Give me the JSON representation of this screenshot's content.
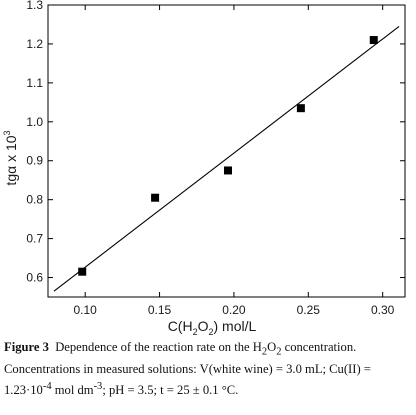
{
  "chart_data": {
    "type": "scatter",
    "title": "",
    "xlabel": "C(H2O2) mol/L",
    "xlabel_parts": {
      "pre": "C(H",
      "sub1": "2",
      "mid": "O",
      "sub2": "2",
      "post": ") mol/L"
    },
    "ylabel": "tgα x 10^3",
    "ylabel_parts": {
      "base": "tgα x 10",
      "sup": "3"
    },
    "xlim": [
      0.075,
      0.315
    ],
    "ylim": [
      0.55,
      1.3
    ],
    "x_ticks": [
      0.1,
      0.15,
      0.2,
      0.25,
      0.3
    ],
    "x_tick_labels": [
      "0.10",
      "0.15",
      "0.20",
      "0.25",
      "0.30"
    ],
    "y_ticks": [
      0.6,
      0.7,
      0.8,
      0.9,
      1.0,
      1.1,
      1.2,
      1.3
    ],
    "y_tick_labels": [
      "0.6",
      "0.7",
      "0.8",
      "0.9",
      "1.0",
      "1.1",
      "1.2",
      "1.3"
    ],
    "grid": false,
    "legend": "none",
    "series": [
      {
        "marker": "square",
        "color": "#000000",
        "x": [
          0.098,
          0.147,
          0.196,
          0.245,
          0.294
        ],
        "y": [
          0.615,
          0.805,
          0.875,
          1.035,
          1.21
        ]
      }
    ],
    "fit_line": {
      "x": [
        0.079,
        0.311
      ],
      "y": [
        0.565,
        1.245
      ],
      "color": "#000000"
    }
  },
  "caption": {
    "label": "Figure 3",
    "text": "Dependence of the reaction rate on the H2O2 concentration. Concentrations in measured solutions: V(white wine) = 3.0 mL; Cu(II) = 1.23·10-4 mol dm-3; pH = 3.5; t = 25 ± 0.1 °C.",
    "parts": {
      "p1": "Dependence of the reaction rate on the H",
      "s1": "2",
      "p2": "O",
      "s2": "2",
      "p3": " concentration. Concentrations in measured solutions: V(white wine) = 3.0 mL; Cu(II) = 1.23·10",
      "sup1": "-4",
      "p4": " mol dm",
      "sup2": "-3",
      "p5": "; pH = 3.5; t = 25 ± 0.1 °C."
    }
  }
}
